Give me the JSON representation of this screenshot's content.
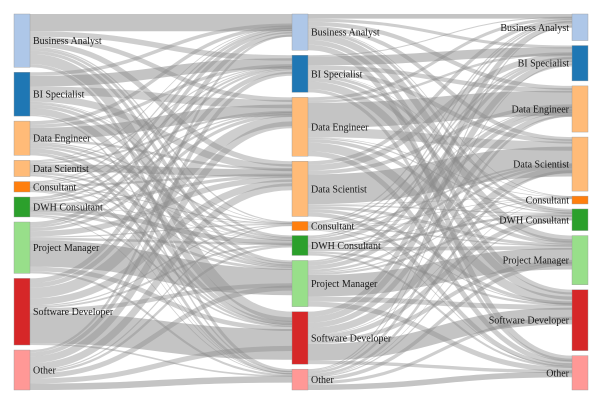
{
  "chart_data": {
    "type": "sankey",
    "columns": [
      {
        "nodes": [
          {
            "label": "Business Analyst",
            "value": 56,
            "color": "#aec7e8"
          },
          {
            "label": "BI Specialist",
            "value": 46,
            "color": "#1f77b4"
          },
          {
            "label": "Data Engineer",
            "value": 36,
            "color": "#ffbb78"
          },
          {
            "label": "Data Scientist",
            "value": 17,
            "color": "#ffbb78"
          },
          {
            "label": "Consultant",
            "value": 11,
            "color": "#ff7f0e"
          },
          {
            "label": "DWH Consultant",
            "value": 21,
            "color": "#2ca02c"
          },
          {
            "label": "Project Manager",
            "value": 54,
            "color": "#98df8a"
          },
          {
            "label": "Software Developer",
            "value": 70,
            "color": "#d62728"
          },
          {
            "label": "Other",
            "value": 42,
            "color": "#ff9896"
          }
        ]
      },
      {
        "nodes": [
          {
            "label": "Business Analyst",
            "value": 40,
            "color": "#aec7e8"
          },
          {
            "label": "BI Specialist",
            "value": 41,
            "color": "#1f77b4"
          },
          {
            "label": "Data Engineer",
            "value": 65,
            "color": "#ffbb78"
          },
          {
            "label": "Data Scientist",
            "value": 61,
            "color": "#ffbb78"
          },
          {
            "label": "Consultant",
            "value": 10,
            "color": "#ff7f0e"
          },
          {
            "label": "DWH Consultant",
            "value": 22,
            "color": "#2ca02c"
          },
          {
            "label": "Project Manager",
            "value": 51,
            "color": "#98df8a"
          },
          {
            "label": "Software Developer",
            "value": 58,
            "color": "#d62728"
          },
          {
            "label": "Other",
            "value": 23,
            "color": "#ff9896"
          }
        ]
      },
      {
        "nodes": [
          {
            "label": "Business Analyst",
            "value": 27,
            "color": "#aec7e8"
          },
          {
            "label": "BI Specialist",
            "value": 36,
            "color": "#1f77b4"
          },
          {
            "label": "Data Engineer",
            "value": 47,
            "color": "#ffbb78"
          },
          {
            "label": "Data Scientist",
            "value": 55,
            "color": "#ffbb78"
          },
          {
            "label": "Consultant",
            "value": 8,
            "color": "#ff7f0e"
          },
          {
            "label": "DWH Consultant",
            "value": 22,
            "color": "#2ca02c"
          },
          {
            "label": "Project Manager",
            "value": 50,
            "color": "#98df8a"
          },
          {
            "label": "Software Developer",
            "value": 62,
            "color": "#d62728"
          },
          {
            "label": "Other",
            "value": 35,
            "color": "#ff9896"
          }
        ]
      }
    ],
    "link_color": "#9e9e9e"
  }
}
